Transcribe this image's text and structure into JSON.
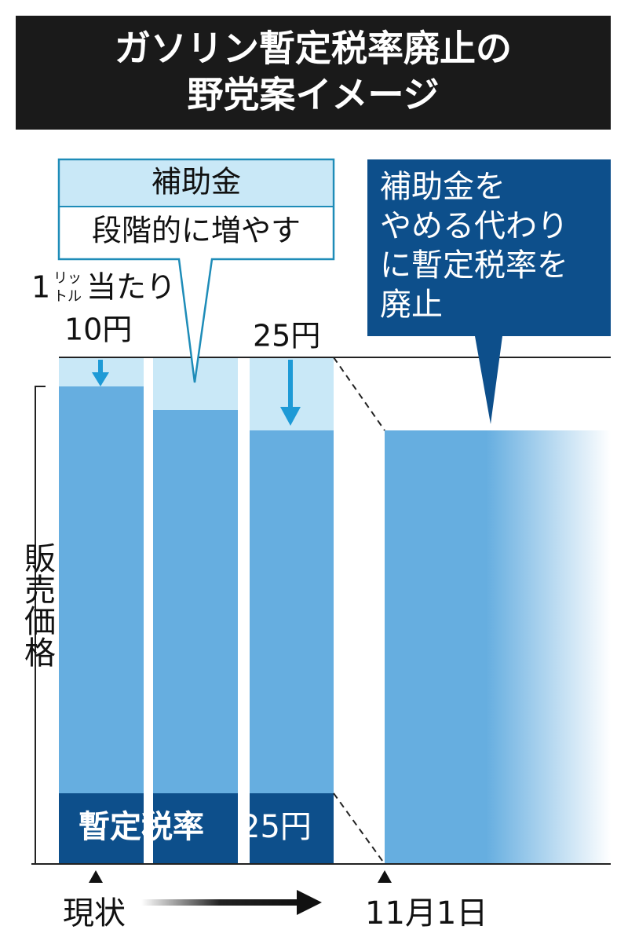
{
  "title": {
    "lines": [
      "ガソリン暫定税率廃止の",
      "野党案イメージ"
    ]
  },
  "callout_subsidy": {
    "heading": "補助金",
    "body": "段階的に増やす"
  },
  "callout_abolish": {
    "lines": [
      "補助金を",
      "やめる代わり",
      "に暫定税率を",
      "廃止"
    ]
  },
  "unit_label": {
    "prefix": "1",
    "small_top": "リッ",
    "small_bottom": "トル",
    "suffix": "当たり"
  },
  "amounts": {
    "first": "10円",
    "third": "25円"
  },
  "tax_label": {
    "name": "暫定税率",
    "amount": "25円"
  },
  "axis_label": "販売価格",
  "timeline": {
    "start": "現状",
    "end": "11月1日"
  }
}
